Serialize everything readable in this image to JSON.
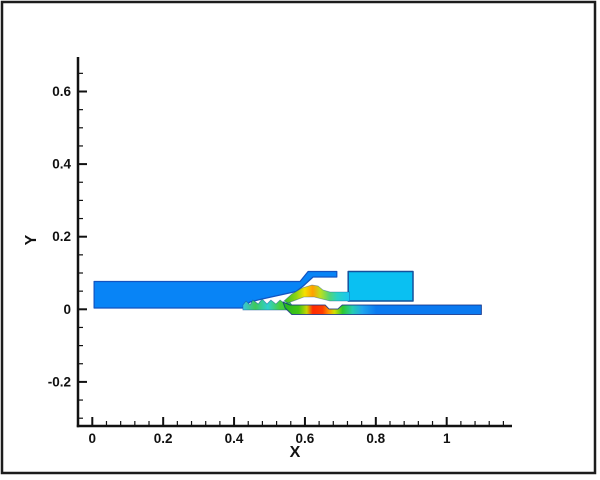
{
  "window": {
    "bg": "#ffffff",
    "frame_color": "#1c1c1c"
  },
  "chart_data": {
    "type": "contour",
    "title": "",
    "xlabel": "X",
    "ylabel": "Y",
    "x_range": [
      -0.04,
      1.185
    ],
    "y_range": [
      -0.322,
      0.695
    ],
    "x_ticks": [
      {
        "v": 0,
        "label": "0"
      },
      {
        "v": 0.2,
        "label": "0.2"
      },
      {
        "v": 0.4,
        "label": "0.4"
      },
      {
        "v": 0.6,
        "label": "0.6"
      },
      {
        "v": 0.8,
        "label": "0.8"
      },
      {
        "v": 1,
        "label": "1"
      }
    ],
    "y_ticks": [
      {
        "v": -0.2,
        "label": "-0.2"
      },
      {
        "v": 0,
        "label": "0"
      },
      {
        "v": 0.2,
        "label": "0.2"
      },
      {
        "v": 0.4,
        "label": "0.4"
      },
      {
        "v": 0.6,
        "label": "0.6"
      }
    ],
    "x_minor_step": 0.04,
    "y_minor_step": 0.05,
    "grid": false,
    "legend": null,
    "colors": {
      "upper_duct_blue": "#0884f6",
      "cavity_cyan": "#0ac0f2",
      "lower_strip_blue": "#0b7af0",
      "contour_green": "#2ec82e",
      "contour_yellow": "#f5e100",
      "contour_red": "#ff2a00",
      "axis_black": "#111111"
    },
    "geometry": {
      "gradients": [
        {
          "id": "gTeeth",
          "x1": 0.425,
          "x2": 0.565,
          "stops": [
            [
              0,
              "#39c6e0"
            ],
            [
              0.25,
              "#3ec95a"
            ],
            [
              0.5,
              "#2fd0cf"
            ],
            [
              0.75,
              "#49cf3a"
            ],
            [
              1,
              "#2fd047"
            ]
          ]
        },
        {
          "id": "gUpper",
          "x1": 0.538,
          "x2": 0.724,
          "stops": [
            [
              0,
              "#29c129"
            ],
            [
              0.2,
              "#8ed412"
            ],
            [
              0.33,
              "#f5e100"
            ],
            [
              0.45,
              "#ffa000"
            ],
            [
              0.57,
              "#bce01e"
            ],
            [
              0.7,
              "#54d474"
            ],
            [
              0.82,
              "#2ad3c3"
            ],
            [
              1,
              "#18c6f2"
            ]
          ]
        },
        {
          "id": "gLower",
          "x1": 0.538,
          "x2": 1.098,
          "stops": [
            [
              0,
              "#22b422"
            ],
            [
              0.08,
              "#44c614"
            ],
            [
              0.12,
              "#c8d400"
            ],
            [
              0.15,
              "#ff2a00"
            ],
            [
              0.2,
              "#ff3c00"
            ],
            [
              0.23,
              "#ff9400"
            ],
            [
              0.26,
              "#cfe000"
            ],
            [
              0.3,
              "#2ec82e"
            ],
            [
              0.35,
              "#26ccb0"
            ],
            [
              0.4,
              "#1fa6ee"
            ],
            [
              0.47,
              "#0b7af0"
            ],
            [
              1,
              "#0b7af0"
            ]
          ]
        }
      ],
      "shapes": [
        {
          "name": "upper-duct-left",
          "fill": "#0884f6",
          "stroke": "#1353c0",
          "sw": 1.2,
          "points": [
            [
              0.005,
              0.0766
            ],
            [
              0.586,
              0.0766
            ],
            [
              0.609,
              0.1041
            ],
            [
              0.69,
              0.1041
            ],
            [
              0.69,
              0.089
            ],
            [
              0.623,
              0.089
            ],
            [
              0.595,
              0.0642
            ],
            [
              0.575,
              0.049
            ],
            [
              0.479,
              0.0284
            ],
            [
              0.445,
              0.0201
            ],
            [
              0.425,
              0.0036
            ],
            [
              0.005,
              0.0036
            ]
          ]
        },
        {
          "name": "seal-teeth-strip",
          "fill": "gradient:gTeeth",
          "stroke": "rgba(21,80,156,0.55)",
          "sw": 0.8,
          "points": [
            [
              0.425,
              -0.0019
            ],
            [
              0.425,
              0.0118
            ],
            [
              0.434,
              0.0229
            ],
            [
              0.445,
              0.0118
            ],
            [
              0.453,
              0.0256
            ],
            [
              0.468,
              0.0146
            ],
            [
              0.479,
              0.0284
            ],
            [
              0.493,
              0.0146
            ],
            [
              0.504,
              0.0256
            ],
            [
              0.518,
              0.0146
            ],
            [
              0.53,
              0.0256
            ],
            [
              0.544,
              0.0146
            ],
            [
              0.555,
              0.0229
            ],
            [
              0.563,
              0.0118
            ],
            [
              0.563,
              -0.0019
            ]
          ]
        },
        {
          "name": "cavity-box",
          "fill": "#0ac0f2",
          "stroke": "#15509c",
          "sw": 1.5,
          "points": [
            [
              0.722,
              0.1041
            ],
            [
              0.905,
              0.1041
            ],
            [
              0.905,
              0.0229
            ],
            [
              0.722,
              0.0229
            ]
          ]
        },
        {
          "name": "upper-seal-channel",
          "fill": "gradient:gUpper",
          "stroke": "rgba(21,80,156,0.45)",
          "sw": 0.8,
          "points": [
            [
              0.541,
              0.0229
            ],
            [
              0.563,
              0.0421
            ],
            [
              0.592,
              0.0587
            ],
            [
              0.62,
              0.0669
            ],
            [
              0.637,
              0.0642
            ],
            [
              0.651,
              0.0532
            ],
            [
              0.671,
              0.0477
            ],
            [
              0.726,
              0.0477
            ],
            [
              0.726,
              0.0229
            ],
            [
              0.671,
              0.0229
            ],
            [
              0.648,
              0.0284
            ],
            [
              0.626,
              0.0339
            ],
            [
              0.597,
              0.0339
            ],
            [
              0.575,
              0.0256
            ],
            [
              0.552,
              0.0173
            ]
          ]
        },
        {
          "name": "lower-jet-strip",
          "fill": "gradient:gLower",
          "stroke": "rgba(16,45,130,0.8)",
          "sw": 1,
          "points": [
            [
              0.538,
              0.0201
            ],
            [
              0.558,
              0.0118
            ],
            [
              0.657,
              0.0118
            ],
            [
              0.668,
              0.0008
            ],
            [
              0.693,
              0.0008
            ],
            [
              0.705,
              0.0118
            ],
            [
              1.098,
              0.0118
            ],
            [
              1.098,
              -0.0143
            ],
            [
              0.563,
              -0.0143
            ],
            [
              0.544,
              0.0036
            ]
          ]
        }
      ]
    }
  }
}
